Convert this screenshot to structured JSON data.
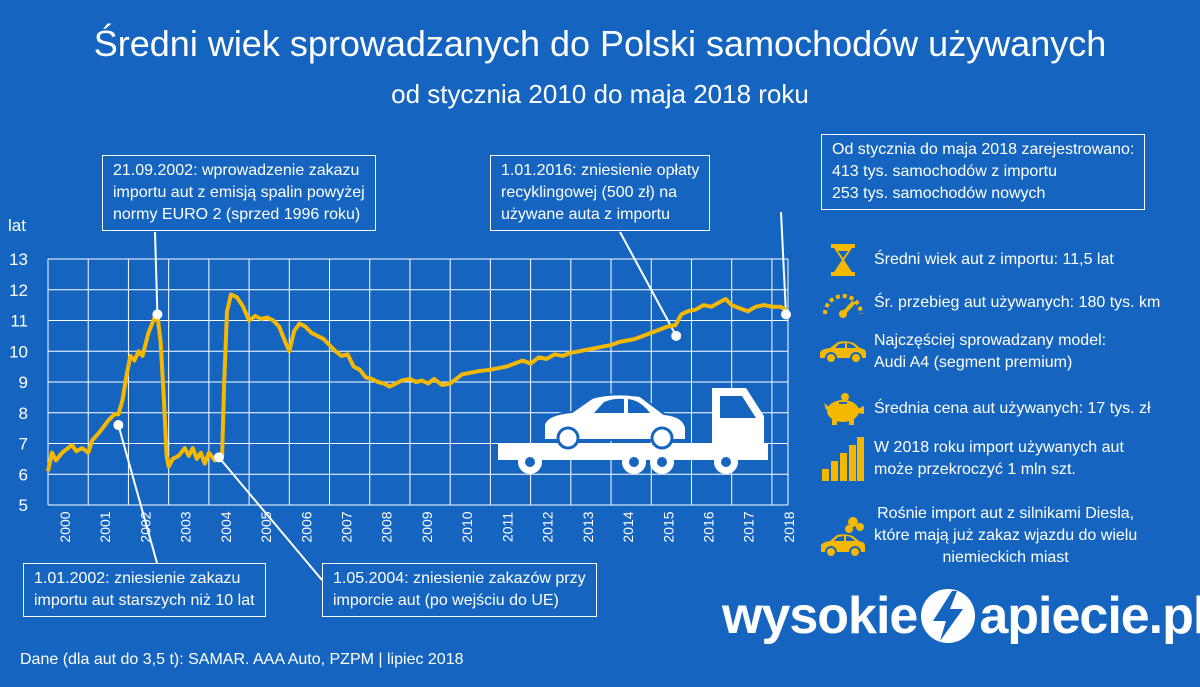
{
  "header": {
    "title": "Średni wiek sprowadzanych do Polski samochodów używanych",
    "subtitle": "od stycznia 2010 do maja 2018 roku"
  },
  "colors": {
    "background": "#1565c0",
    "line": "#f5b800",
    "text": "#ffffff",
    "grid": "#ffffff"
  },
  "chart_data": {
    "type": "line",
    "title": "Średni wiek sprowadzanych do Polski samochodów używanych",
    "subtitle": "od stycznia 2010 do maja 2018 roku",
    "ylabel": "lat",
    "xlabel": "",
    "ylim": [
      5,
      13
    ],
    "yticks": [
      "5",
      "6",
      "7",
      "8",
      "9",
      "10",
      "11",
      "12",
      "13"
    ],
    "xlim": [
      2000,
      2018.4
    ],
    "xticks": [
      "2000",
      "2001",
      "2002",
      "2003",
      "2004",
      "2005",
      "2006",
      "2007",
      "2008",
      "2009",
      "2010",
      "2011",
      "2012",
      "2013",
      "2014",
      "2015",
      "2016",
      "2017",
      "2018"
    ],
    "grid": true,
    "series": [
      {
        "values": [
          [
            2000.0,
            6.1
          ],
          [
            2000.1,
            6.7
          ],
          [
            2000.2,
            6.45
          ],
          [
            2000.35,
            6.7
          ],
          [
            2000.5,
            6.85
          ],
          [
            2000.6,
            6.95
          ],
          [
            2000.7,
            6.75
          ],
          [
            2000.85,
            6.85
          ],
          [
            2001.0,
            6.7
          ],
          [
            2001.1,
            7.1
          ],
          [
            2001.3,
            7.4
          ],
          [
            2001.5,
            7.75
          ],
          [
            2001.65,
            7.95
          ],
          [
            2001.75,
            7.95
          ],
          [
            2001.85,
            8.4
          ],
          [
            2001.95,
            9.2
          ],
          [
            2002.05,
            9.85
          ],
          [
            2002.15,
            9.7
          ],
          [
            2002.25,
            10.0
          ],
          [
            2002.35,
            9.85
          ],
          [
            2002.5,
            10.6
          ],
          [
            2002.65,
            11.1
          ],
          [
            2002.72,
            11.2
          ],
          [
            2002.8,
            10.3
          ],
          [
            2002.88,
            8.5
          ],
          [
            2002.95,
            6.6
          ],
          [
            2003.0,
            6.25
          ],
          [
            2003.1,
            6.5
          ],
          [
            2003.25,
            6.6
          ],
          [
            2003.4,
            6.85
          ],
          [
            2003.5,
            6.6
          ],
          [
            2003.6,
            6.85
          ],
          [
            2003.7,
            6.5
          ],
          [
            2003.8,
            6.7
          ],
          [
            2003.9,
            6.35
          ],
          [
            2004.0,
            6.7
          ],
          [
            2004.15,
            6.45
          ],
          [
            2004.25,
            6.6
          ],
          [
            2004.33,
            6.6
          ],
          [
            2004.38,
            9.0
          ],
          [
            2004.45,
            11.3
          ],
          [
            2004.55,
            11.85
          ],
          [
            2004.7,
            11.75
          ],
          [
            2004.85,
            11.45
          ],
          [
            2005.0,
            11.0
          ],
          [
            2005.15,
            11.15
          ],
          [
            2005.3,
            11.05
          ],
          [
            2005.45,
            11.1
          ],
          [
            2005.6,
            11.0
          ],
          [
            2005.75,
            10.8
          ],
          [
            2005.9,
            10.3
          ],
          [
            2006.0,
            10.0
          ],
          [
            2006.12,
            10.65
          ],
          [
            2006.25,
            10.9
          ],
          [
            2006.4,
            10.8
          ],
          [
            2006.55,
            10.6
          ],
          [
            2006.7,
            10.5
          ],
          [
            2006.85,
            10.4
          ],
          [
            2007.0,
            10.2
          ],
          [
            2007.15,
            10.0
          ],
          [
            2007.3,
            9.85
          ],
          [
            2007.45,
            9.9
          ],
          [
            2007.6,
            9.5
          ],
          [
            2007.75,
            9.4
          ],
          [
            2007.9,
            9.15
          ],
          [
            2008.05,
            9.1
          ],
          [
            2008.2,
            9.0
          ],
          [
            2008.35,
            8.95
          ],
          [
            2008.5,
            8.85
          ],
          [
            2008.65,
            8.95
          ],
          [
            2008.8,
            9.05
          ],
          [
            2009.0,
            9.1
          ],
          [
            2009.15,
            9.0
          ],
          [
            2009.3,
            9.05
          ],
          [
            2009.45,
            8.95
          ],
          [
            2009.6,
            9.1
          ],
          [
            2009.8,
            8.9
          ],
          [
            2010.0,
            8.95
          ],
          [
            2010.15,
            9.1
          ],
          [
            2010.3,
            9.25
          ],
          [
            2010.5,
            9.3
          ],
          [
            2010.7,
            9.35
          ],
          [
            2011.0,
            9.4
          ],
          [
            2011.2,
            9.45
          ],
          [
            2011.4,
            9.5
          ],
          [
            2011.6,
            9.6
          ],
          [
            2011.8,
            9.7
          ],
          [
            2012.0,
            9.6
          ],
          [
            2012.2,
            9.8
          ],
          [
            2012.4,
            9.75
          ],
          [
            2012.6,
            9.9
          ],
          [
            2012.8,
            9.85
          ],
          [
            2013.0,
            9.95
          ],
          [
            2013.2,
            10.0
          ],
          [
            2013.4,
            10.05
          ],
          [
            2013.6,
            10.1
          ],
          [
            2013.8,
            10.15
          ],
          [
            2014.0,
            10.2
          ],
          [
            2014.2,
            10.3
          ],
          [
            2014.4,
            10.35
          ],
          [
            2014.6,
            10.4
          ],
          [
            2014.8,
            10.5
          ],
          [
            2015.0,
            10.6
          ],
          [
            2015.2,
            10.7
          ],
          [
            2015.4,
            10.8
          ],
          [
            2015.6,
            10.85
          ],
          [
            2015.75,
            11.2
          ],
          [
            2015.9,
            11.3
          ],
          [
            2016.1,
            11.35
          ],
          [
            2016.3,
            11.5
          ],
          [
            2016.5,
            11.45
          ],
          [
            2016.7,
            11.6
          ],
          [
            2016.85,
            11.7
          ],
          [
            2017.0,
            11.5
          ],
          [
            2017.2,
            11.4
          ],
          [
            2017.4,
            11.3
          ],
          [
            2017.6,
            11.45
          ],
          [
            2017.8,
            11.5
          ],
          [
            2018.0,
            11.45
          ],
          [
            2018.2,
            11.45
          ],
          [
            2018.35,
            11.35
          ]
        ]
      }
    ],
    "annotations": [
      {
        "lines": [
          "21.09.2002: wprowadzenie zakazu",
          "importu aut z emisją spalin powyżej",
          "normy EURO 2 (sprzed 1996 roku)"
        ],
        "point": [
          2002.72,
          11.2
        ]
      },
      {
        "lines": [
          "1.01.2016: zniesienie opłaty",
          "recyklingowej (500 zł) na",
          "używane auta z importu"
        ],
        "point": [
          2015.62,
          10.5
        ]
      },
      {
        "lines": [
          "Od stycznia do maja 2018 zarejestrowano:",
          "413 tys. samochodów z importu",
          "253 tys. samochodów nowych"
        ],
        "point": [
          2018.35,
          11.2
        ]
      },
      {
        "lines": [
          "1.01.2002: zniesienie zakazu",
          "importu aut starszych niż 10 lat"
        ],
        "point": [
          2001.75,
          7.6
        ]
      },
      {
        "lines": [
          "1.05.2004: zniesienie zakazów przy",
          "imporcie aut (po wejściu do UE)"
        ],
        "point": [
          2004.25,
          6.55
        ]
      }
    ]
  },
  "facts": [
    {
      "icon": "hourglass-icon",
      "lines": [
        "Średni wiek aut z importu: 11,5 lat"
      ]
    },
    {
      "icon": "speedometer-icon",
      "lines": [
        "Śr. przebieg aut używanych: 180 tys. km"
      ]
    },
    {
      "icon": "car-icon",
      "lines": [
        "Najczęściej sprowadzany model:",
        "Audi A4 (segment premium)"
      ]
    },
    {
      "icon": "piggy-bank-icon",
      "lines": [
        "Średnia cena aut używanych: 17 tys. zł"
      ]
    },
    {
      "icon": "bar-growth-icon",
      "lines": [
        "W 2018 roku import używanych aut",
        "może przekroczyć 1 mln szt."
      ]
    },
    {
      "icon": "diesel-car-smoke-icon",
      "lines": [
        "Rośnie import aut z silnikami Diesla,",
        "które mają już zakaz wjazdu do wielu",
        "niemieckich miast"
      ]
    }
  ],
  "footer": {
    "source": "Dane (dla aut do 3,5 t): SAMAR. AAA Auto, PZPM  |  lipiec 2018",
    "brand_left": "wysokie",
    "brand_right": "apiecie.pl"
  }
}
